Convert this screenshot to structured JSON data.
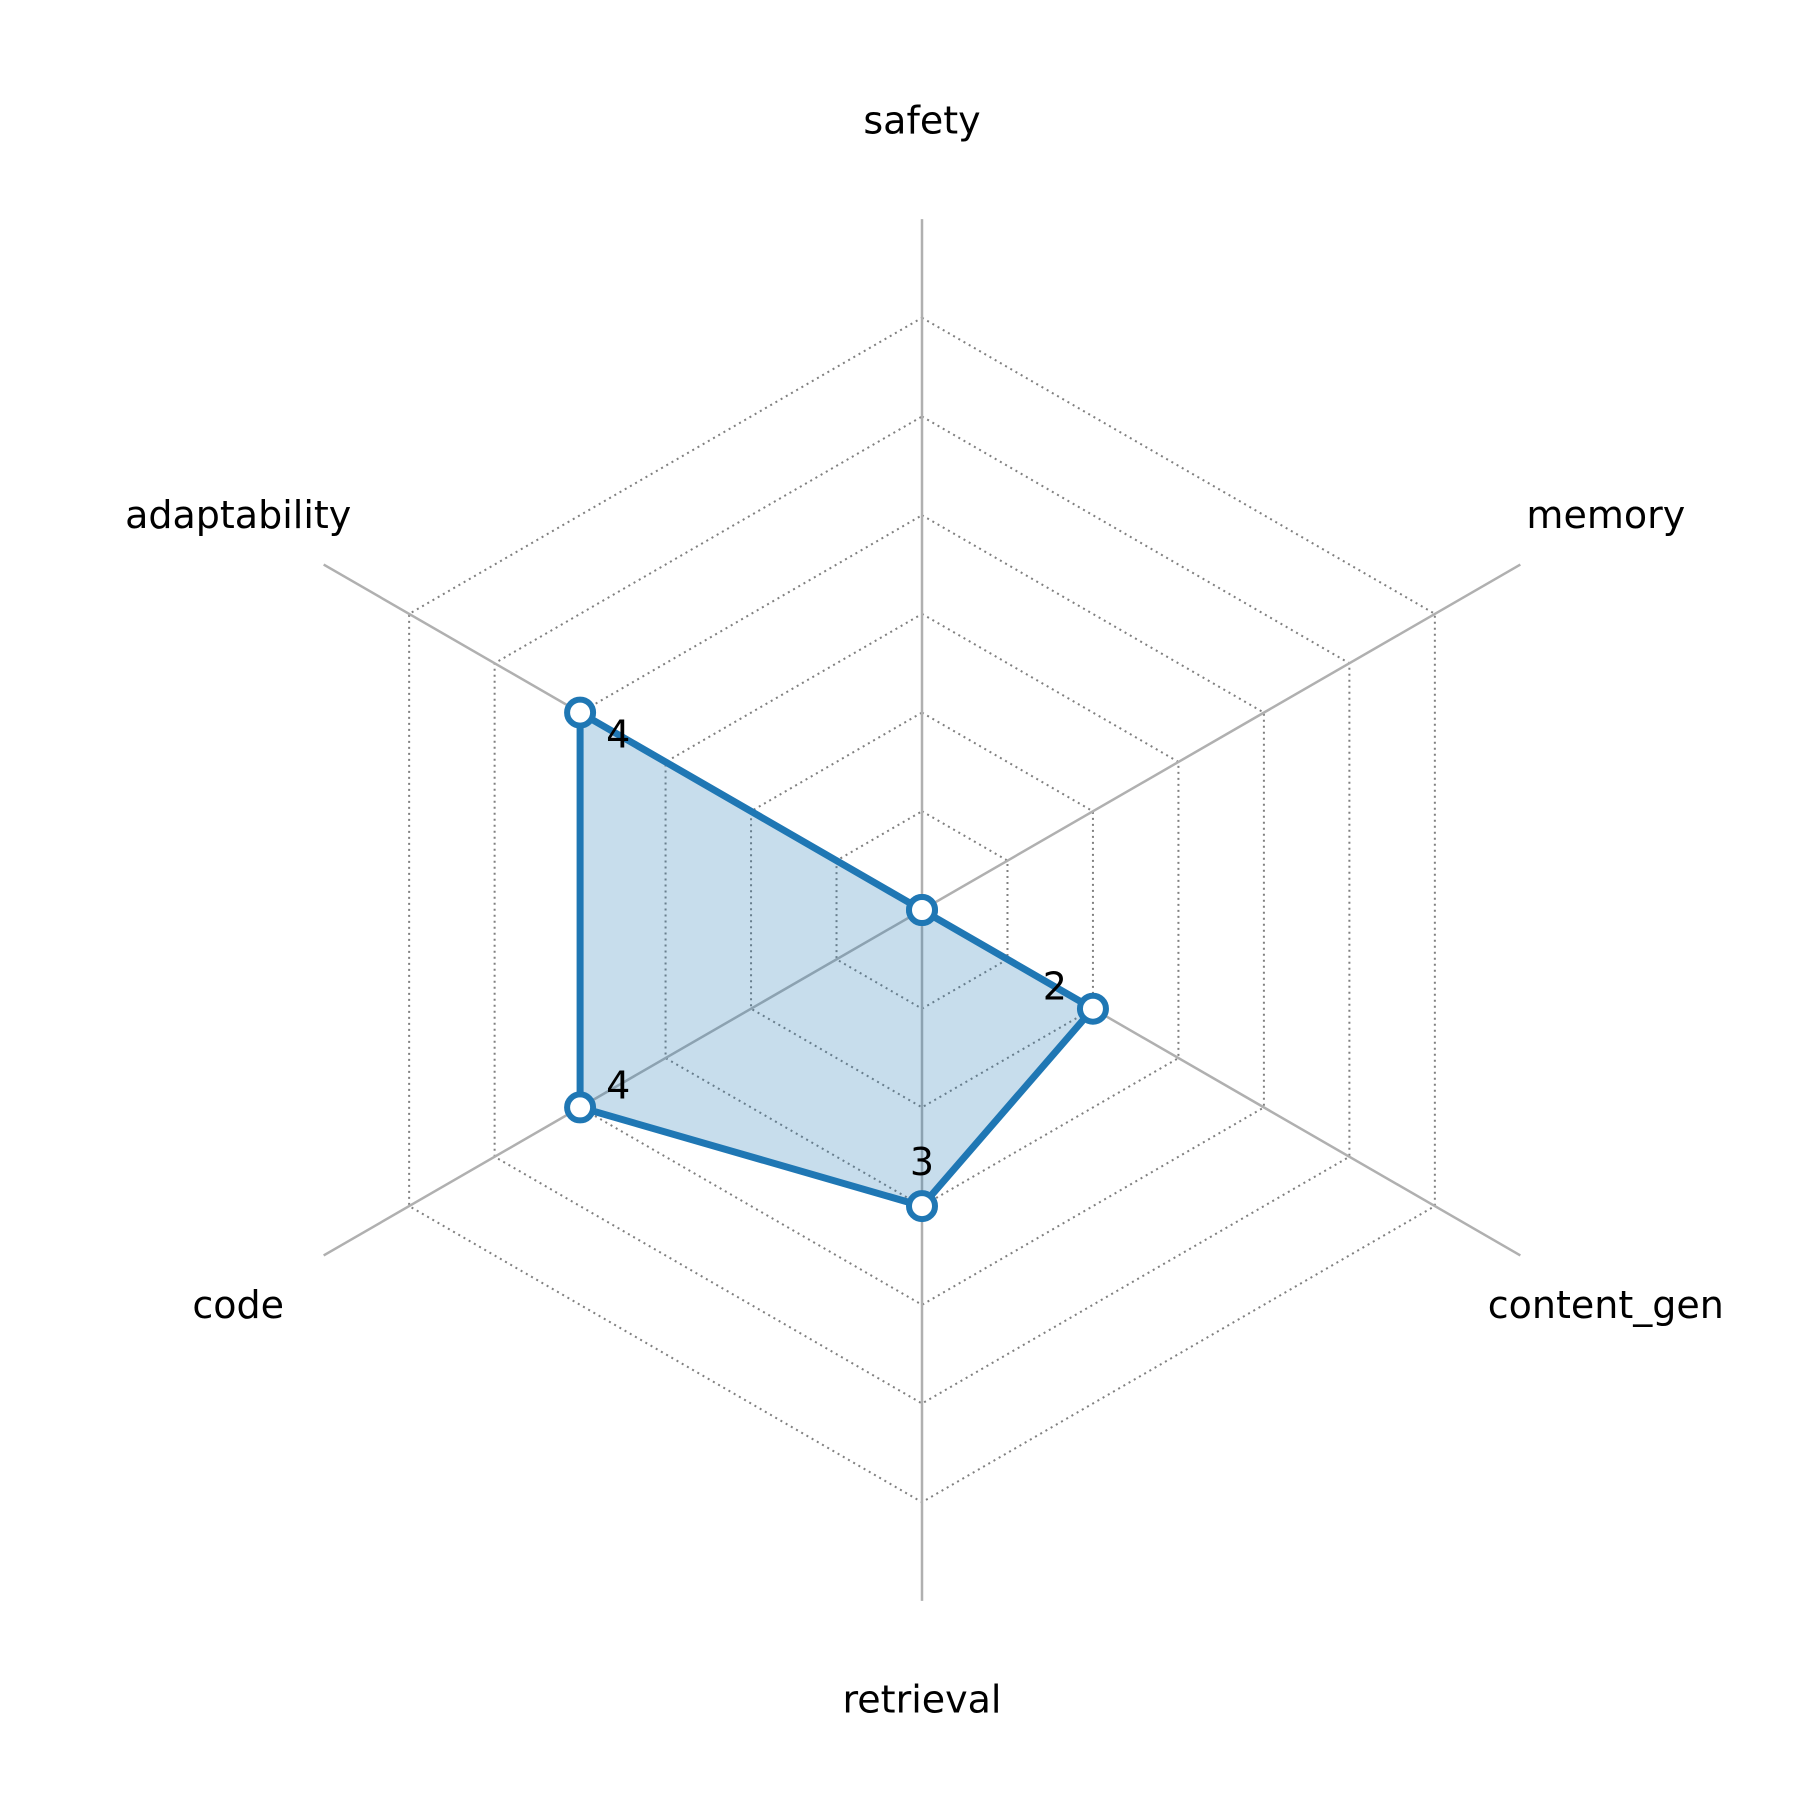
{
  "chart_data": {
    "type": "radar",
    "categories": [
      "safety",
      "memory",
      "content_gen",
      "retrieval",
      "code",
      "adaptability"
    ],
    "values": [
      0,
      0,
      2,
      3,
      4,
      4
    ],
    "value_labels": [
      "",
      "",
      "2",
      "3",
      "4",
      "4"
    ],
    "rlim": [
      0,
      7
    ],
    "grid_levels": [
      1,
      2,
      3,
      4,
      5,
      6
    ],
    "grid": true,
    "colors": {
      "line": "#1f77b4",
      "fill": "#1f77b4",
      "marker_face": "#ffffff",
      "axis": "#b0b0b0",
      "grid": "#808080"
    }
  }
}
